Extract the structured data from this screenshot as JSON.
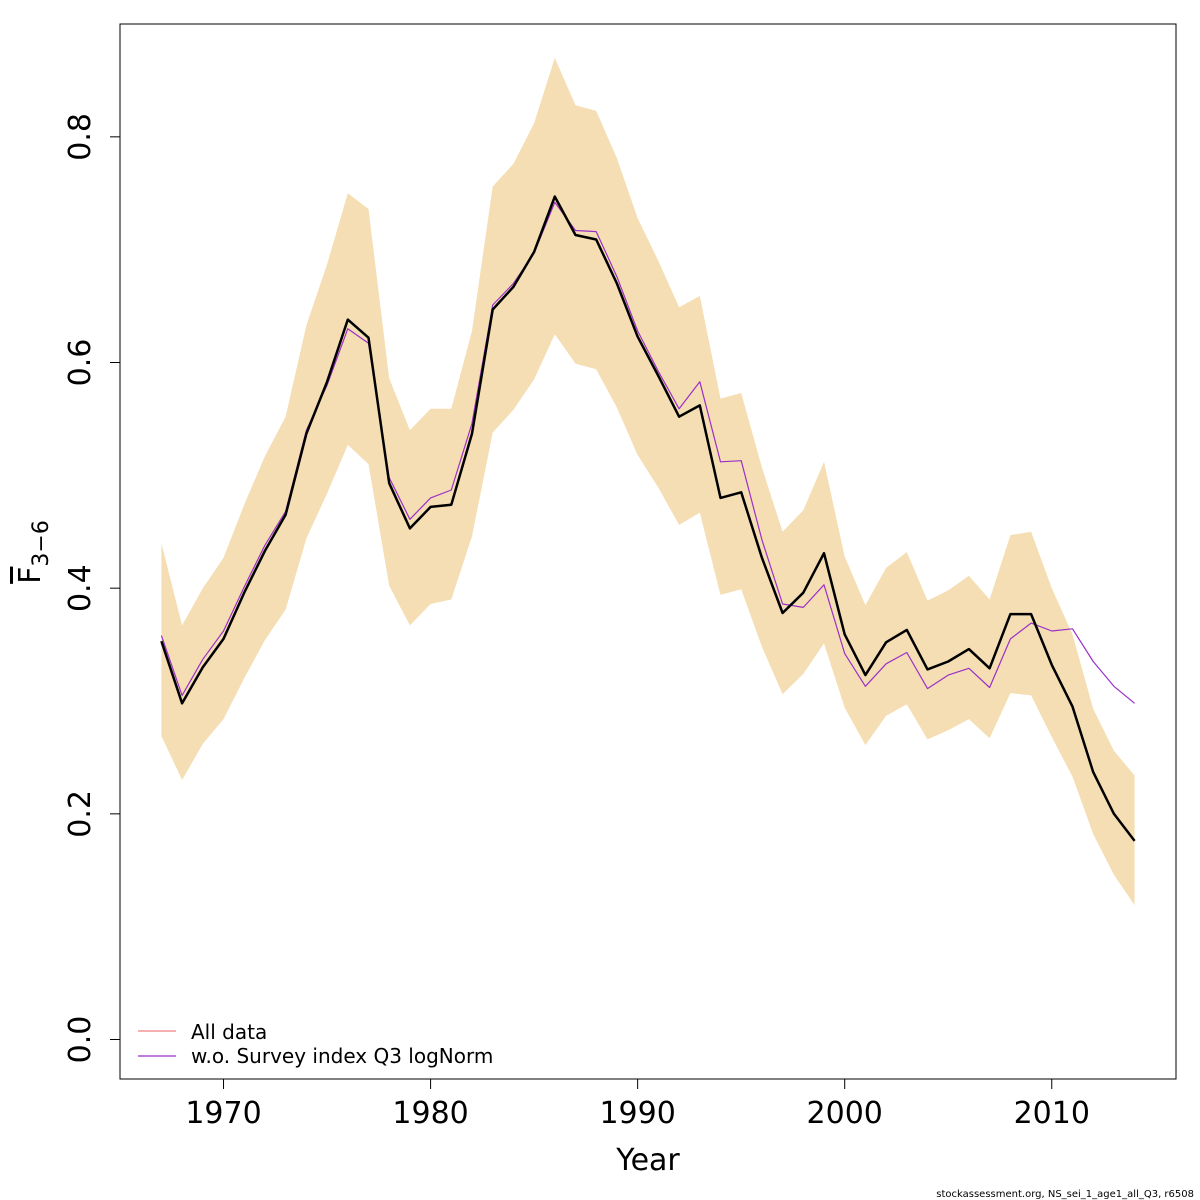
{
  "chart_data": {
    "type": "line",
    "xlabel": "Year",
    "ylabel": {
      "main": "F",
      "sub": "3−6"
    },
    "xlim": [
      1965,
      2016
    ],
    "ylim": [
      -0.035,
      0.9
    ],
    "xticks": [
      1970,
      1980,
      1990,
      2000,
      2010
    ],
    "yticks": [
      0.0,
      0.2,
      0.4,
      0.6,
      0.8
    ],
    "xtick_labels": [
      "1970",
      "1980",
      "1990",
      "2000",
      "2010"
    ],
    "ytick_labels": [
      "0.0",
      "0.2",
      "0.4",
      "0.6",
      "0.8"
    ],
    "grid": false,
    "legend_position": "bottom-left",
    "confidence_band": {
      "color": "#f5deb3",
      "x": [
        1967,
        1968,
        1969,
        1970,
        1971,
        1972,
        1973,
        1974,
        1975,
        1976,
        1977,
        1978,
        1979,
        1980,
        1981,
        1982,
        1983,
        1984,
        1985,
        1986,
        1987,
        1988,
        1989,
        1990,
        1991,
        1992,
        1993,
        1994,
        1995,
        1996,
        1997,
        1998,
        1999,
        2000,
        2001,
        2002,
        2003,
        2004,
        2005,
        2006,
        2007,
        2008,
        2009,
        2010,
        2011,
        2012,
        2013,
        2014
      ],
      "upper": [
        0.44,
        0.367,
        0.4,
        0.427,
        0.474,
        0.517,
        0.552,
        0.633,
        0.687,
        0.75,
        0.736,
        0.586,
        0.54,
        0.559,
        0.559,
        0.628,
        0.756,
        0.776,
        0.812,
        0.87,
        0.828,
        0.823,
        0.781,
        0.728,
        0.69,
        0.649,
        0.659,
        0.568,
        0.573,
        0.507,
        0.45,
        0.469,
        0.512,
        0.428,
        0.385,
        0.418,
        0.432,
        0.389,
        0.398,
        0.411,
        0.39,
        0.447,
        0.45,
        0.4,
        0.359,
        0.293,
        0.256,
        0.234
      ],
      "lower": [
        0.269,
        0.23,
        0.262,
        0.284,
        0.32,
        0.354,
        0.381,
        0.444,
        0.484,
        0.527,
        0.51,
        0.402,
        0.367,
        0.386,
        0.39,
        0.446,
        0.538,
        0.558,
        0.585,
        0.625,
        0.599,
        0.594,
        0.56,
        0.518,
        0.489,
        0.456,
        0.467,
        0.394,
        0.399,
        0.348,
        0.306,
        0.324,
        0.351,
        0.294,
        0.261,
        0.287,
        0.297,
        0.266,
        0.274,
        0.284,
        0.267,
        0.307,
        0.305,
        0.268,
        0.233,
        0.182,
        0.146,
        0.119
      ]
    },
    "series": [
      {
        "name": "",
        "color": "#000000",
        "width": 2.5,
        "x": [
          1967,
          1968,
          1969,
          1970,
          1971,
          1972,
          1973,
          1974,
          1975,
          1976,
          1977,
          1978,
          1979,
          1980,
          1981,
          1982,
          1983,
          1984,
          1985,
          1986,
          1987,
          1988,
          1989,
          1990,
          1991,
          1992,
          1993,
          1994,
          1995,
          1996,
          1997,
          1998,
          1999,
          2000,
          2001,
          2002,
          2003,
          2004,
          2005,
          2006,
          2007,
          2008,
          2009,
          2010,
          2011,
          2012,
          2013,
          2014
        ],
        "values": [
          0.353,
          0.298,
          0.33,
          0.355,
          0.396,
          0.433,
          0.465,
          0.537,
          0.583,
          0.638,
          0.622,
          0.493,
          0.453,
          0.472,
          0.474,
          0.537,
          0.647,
          0.667,
          0.698,
          0.747,
          0.713,
          0.709,
          0.67,
          0.623,
          0.588,
          0.552,
          0.562,
          0.48,
          0.485,
          0.427,
          0.378,
          0.396,
          0.431,
          0.359,
          0.323,
          0.352,
          0.363,
          0.328,
          0.335,
          0.346,
          0.329,
          0.377,
          0.377,
          0.332,
          0.295,
          0.237,
          0.2,
          0.176
        ]
      },
      {
        "name": "All data",
        "color": "#f08080",
        "width": 1.2,
        "x": [
          1967,
          1968,
          1969,
          1970,
          1971,
          1972,
          1973,
          1974,
          1975,
          1976,
          1977,
          1978,
          1979,
          1980,
          1981,
          1982,
          1983,
          1984,
          1985,
          1986,
          1987,
          1988,
          1989,
          1990,
          1991,
          1992,
          1993,
          1994,
          1995,
          1996,
          1997,
          1998,
          1999,
          2000,
          2001,
          2002,
          2003,
          2004,
          2005,
          2006,
          2007,
          2008,
          2009,
          2010,
          2011,
          2012,
          2013,
          2014
        ],
        "values": [
          0.353,
          0.298,
          0.33,
          0.355,
          0.396,
          0.433,
          0.465,
          0.537,
          0.583,
          0.638,
          0.622,
          0.493,
          0.453,
          0.472,
          0.474,
          0.537,
          0.647,
          0.667,
          0.698,
          0.747,
          0.713,
          0.709,
          0.67,
          0.623,
          0.588,
          0.552,
          0.562,
          0.48,
          0.485,
          0.427,
          0.378,
          0.396,
          0.431,
          0.359,
          0.323,
          0.352,
          0.363,
          0.328,
          0.335,
          0.346,
          0.329,
          0.377,
          0.377,
          0.332,
          0.295,
          0.237,
          0.2,
          0.176
        ]
      },
      {
        "name": "w.o. Survey index Q3 logNorm",
        "color": "#9b30c8",
        "width": 1.2,
        "x": [
          1967,
          1968,
          1969,
          1970,
          1971,
          1972,
          1973,
          1974,
          1975,
          1976,
          1977,
          1978,
          1979,
          1980,
          1981,
          1982,
          1983,
          1984,
          1985,
          1986,
          1987,
          1988,
          1989,
          1990,
          1991,
          1992,
          1993,
          1994,
          1995,
          1996,
          1997,
          1998,
          1999,
          2000,
          2001,
          2002,
          2003,
          2004,
          2005,
          2006,
          2007,
          2008,
          2009,
          2010,
          2011,
          2012,
          2013,
          2014
        ],
        "values": [
          0.358,
          0.305,
          0.337,
          0.362,
          0.401,
          0.438,
          0.468,
          0.54,
          0.58,
          0.63,
          0.617,
          0.498,
          0.461,
          0.48,
          0.487,
          0.546,
          0.651,
          0.67,
          0.697,
          0.742,
          0.717,
          0.716,
          0.676,
          0.628,
          0.592,
          0.559,
          0.583,
          0.512,
          0.513,
          0.443,
          0.386,
          0.383,
          0.403,
          0.342,
          0.313,
          0.333,
          0.343,
          0.311,
          0.323,
          0.329,
          0.312,
          0.355,
          0.369,
          0.362,
          0.364,
          0.335,
          0.313,
          0.298
        ]
      }
    ],
    "legend": [
      {
        "label": "All data",
        "color": "#f08080"
      },
      {
        "label": "w.o. Survey index Q3 logNorm",
        "color": "#9b30c8"
      }
    ],
    "footer": "stockassessment.org, NS_sei_1_age1_all_Q3, r6508"
  }
}
